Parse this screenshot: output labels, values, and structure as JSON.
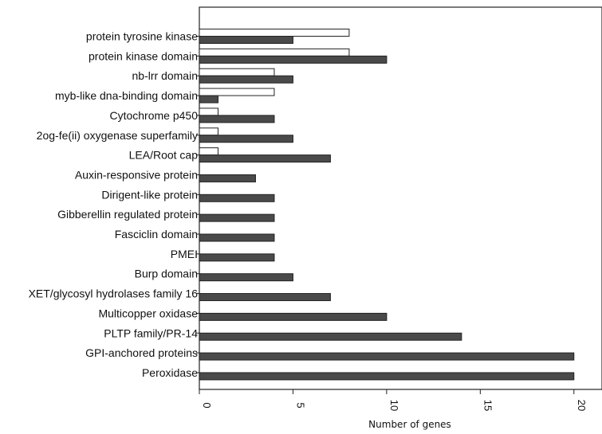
{
  "chart_data": {
    "type": "bar",
    "orientation": "horizontal",
    "title": "",
    "xlabel": "Number of genes",
    "ylabel": "",
    "xlim": [
      0,
      21.5
    ],
    "x_ticks": [
      "0",
      "5",
      "10",
      "15",
      "20"
    ],
    "grid": false,
    "legend": "none",
    "categories": [
      "protein tyrosine kinase",
      "protein kinase domain",
      "nb-lrr domain",
      "myb-like dna-binding domain",
      "Cytochrome p450",
      "2og-fe(ii) oxygenase superfamily",
      "LEA/Root cap",
      "Auxin-responsive protein",
      "Dirigent-like protein",
      "Gibberellin regulated protein",
      "Fasciclin domain",
      "PMEI",
      "Burp domain",
      "XET/glycosyl hydrolases family 16",
      "Multicopper oxidase",
      "PLTP family/PR-14",
      "GPI-anchored proteins",
      "Peroxidase"
    ],
    "series": [
      {
        "color": "#ffffff",
        "values": [
          8,
          8,
          4,
          4,
          1,
          1,
          1,
          0,
          0,
          0,
          0,
          0,
          0,
          0,
          0,
          0,
          0,
          0
        ]
      },
      {
        "color": "#4a4a4a",
        "values": [
          5,
          10,
          5,
          1,
          4,
          5,
          7,
          3,
          4,
          4,
          4,
          4,
          5,
          7,
          10,
          14,
          20,
          20
        ]
      }
    ],
    "colors": {
      "axis": "#222222",
      "bar_stroke": "#222222"
    }
  }
}
